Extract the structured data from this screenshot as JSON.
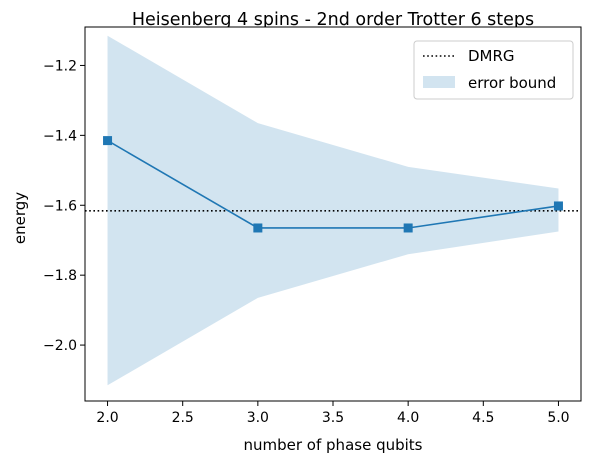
{
  "chart_data": {
    "type": "line",
    "title": "Heisenberg 4 spins - 2nd order Trotter 6 steps",
    "xlabel": "number of phase qubits",
    "ylabel": "energy",
    "xlim": [
      1.85,
      5.15
    ],
    "ylim": [
      -2.16,
      -1.09
    ],
    "xticks": [
      2.0,
      2.5,
      3.0,
      3.5,
      4.0,
      4.5,
      5.0
    ],
    "xtick_labels": [
      "2.0",
      "2.5",
      "3.0",
      "3.5",
      "4.0",
      "4.5",
      "5.0"
    ],
    "yticks": [
      -2.0,
      -1.8,
      -1.6,
      -1.4,
      -1.2
    ],
    "ytick_labels": [
      "−2.0",
      "−1.8",
      "−1.6",
      "−1.4",
      "−1.2"
    ],
    "grid": false,
    "legend_position": "top-right",
    "series": [
      {
        "kind": "line-markers",
        "x": [
          2,
          3,
          4,
          5
        ],
        "y": [
          -1.415,
          -1.665,
          -1.665,
          -1.602
        ],
        "color": "#1f77b4",
        "marker": "square"
      }
    ],
    "reference_line": {
      "name": "DMRG",
      "y": -1.616,
      "style": "dotted",
      "color": "#000000"
    },
    "band": {
      "name": "error bound",
      "x": [
        2,
        3,
        4,
        5
      ],
      "upper": [
        -1.115,
        -1.365,
        -1.49,
        -1.552
      ],
      "lower": [
        -2.115,
        -1.865,
        -1.74,
        -1.675
      ],
      "color": "#1f77b4",
      "opacity": 0.2
    },
    "legend": [
      "DMRG",
      "error bound"
    ]
  }
}
